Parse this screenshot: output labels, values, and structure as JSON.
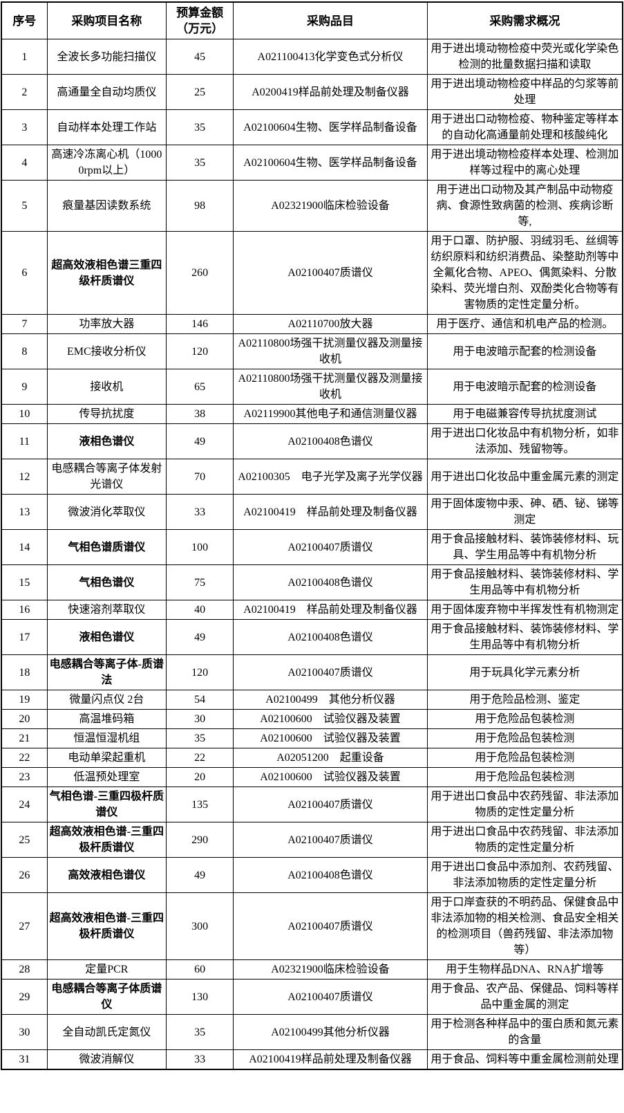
{
  "page": {
    "background_color": "#ffffff",
    "text_color": "#000000",
    "border_color": "#000000"
  },
  "table": {
    "headers": [
      "序号",
      "采购项目名称",
      "预算金额（万元）",
      "采购品目",
      "采购需求概况"
    ],
    "rows": [
      {
        "no": "1",
        "name": "全波长多功能扫描仪",
        "bold": false,
        "budget": "45",
        "item": "A021100413化学变色式分析仪",
        "need": "用于进出境动物检疫中荧光或化学染色检测的批量数据扫描和读取"
      },
      {
        "no": "2",
        "name": "高通量全自动均质仪",
        "bold": false,
        "budget": "25",
        "item": "A0200419样品前处理及制备仪器",
        "need": "用于进出境动物检疫中样品的匀浆等前处理"
      },
      {
        "no": "3",
        "name": "自动样本处理工作站",
        "bold": false,
        "budget": "35",
        "item": "A02100604生物、医学样品制备设备",
        "need": "用于进出口动物检疫、物种鉴定等样本的自动化高通量前处理和核酸纯化"
      },
      {
        "no": "4",
        "name": "高速冷冻离心机（10000rpm以上）",
        "bold": false,
        "budget": "35",
        "item": "A02100604生物、医学样品制备设备",
        "need": "用于进出境动物检疫样本处理、检测加样等过程中的离心处理"
      },
      {
        "no": "5",
        "name": "痕量基因读数系统",
        "bold": false,
        "budget": "98",
        "item": "A02321900临床检验设备",
        "need": "用于进出口动物及其产制品中动物疫病、食源性致病菌的检测、疾病诊断等,"
      },
      {
        "no": "6",
        "name": "超高效液相色谱三重四级杆质谱仪",
        "bold": true,
        "budget": "260",
        "item": "A02100407质谱仪",
        "need": "用于口罩、防护服、羽绒羽毛、丝绸等纺织原料和纺织消费品、染整助剂等中全氟化合物、APEO、偶氮染料、分散染料、荧光增白剂、双酚类化合物等有害物质的定性定量分析。"
      },
      {
        "no": "7",
        "name": "功率放大器",
        "bold": false,
        "budget": "146",
        "item": "A02110700放大器",
        "need": "用于医疗、通信和机电产品的检测。"
      },
      {
        "no": "8",
        "name": "EMC接收分析仪",
        "bold": false,
        "budget": "120",
        "item": "A02110800场强干扰测量仪器及测量接收机",
        "need": "用于电波暗示配套的检测设备"
      },
      {
        "no": "9",
        "name": "接收机",
        "bold": false,
        "budget": "65",
        "item": "A02110800场强干扰测量仪器及测量接收机",
        "need": "用于电波暗示配套的检测设备"
      },
      {
        "no": "10",
        "name": "传导抗扰度",
        "bold": false,
        "budget": "38",
        "item": "A02119900其他电子和通信测量仪器",
        "need": "用于电磁兼容传导抗扰度测试"
      },
      {
        "no": "11",
        "name": "液相色谱仪",
        "bold": true,
        "budget": "49",
        "item": "A02100408色谱仪",
        "need": "用于进出口化妆品中有机物分析，如非法添加、残留物等。"
      },
      {
        "no": "12",
        "name": "电感耦合等离子体发射光谱仪",
        "bold": false,
        "budget": "70",
        "item": "A02100305　电子光学及离子光学仪器",
        "need": "用于进出口化妆品中重金属元素的测定"
      },
      {
        "no": "13",
        "name": "微波消化萃取仪",
        "bold": false,
        "budget": "33",
        "item": "A02100419　样品前处理及制备仪器",
        "need": "用于固体废物中汞、砷、硒、铋、锑等测定"
      },
      {
        "no": "14",
        "name": "气相色谱质谱仪",
        "bold": true,
        "budget": "100",
        "item": "A02100407质谱仪",
        "need": "用于食品接触材料、装饰装修材料、玩具、学生用品等中有机物分析"
      },
      {
        "no": "15",
        "name": "气相色谱仪",
        "bold": true,
        "budget": "75",
        "item": "A02100408色谱仪",
        "need": "用于食品接触材料、装饰装修材料、学生用品等中有机物分析"
      },
      {
        "no": "16",
        "name": "快速溶剂萃取仪",
        "bold": false,
        "budget": "40",
        "item": "A02100419　样品前处理及制备仪器",
        "need": "用于固体废弃物中半挥发性有机物测定"
      },
      {
        "no": "17",
        "name": "液相色谱仪",
        "bold": true,
        "budget": "49",
        "item": "A02100408色谱仪",
        "need": "用于食品接触材料、装饰装修材料、学生用品等中有机物分析"
      },
      {
        "no": "18",
        "name": "电感耦合等离子体-质谱法",
        "bold": true,
        "budget": "120",
        "item": "A02100407质谱仪",
        "need": "用于玩具化学元素分析"
      },
      {
        "no": "19",
        "name": "微量闪点仪 2台",
        "bold": false,
        "budget": "54",
        "item": "A02100499　其他分析仪器",
        "need": "用于危险品检测、鉴定"
      },
      {
        "no": "20",
        "name": "高温堆码箱",
        "bold": false,
        "budget": "30",
        "item": "A02100600　试验仪器及装置",
        "need": "用于危险品包装检测"
      },
      {
        "no": "21",
        "name": "恒温恒湿机组",
        "bold": false,
        "budget": "35",
        "item": "A02100600　试验仪器及装置",
        "need": "用于危险品包装检测"
      },
      {
        "no": "22",
        "name": "电动单梁起重机",
        "bold": false,
        "budget": "22",
        "item": "A02051200　起重设备",
        "need": "用于危险品包装检测"
      },
      {
        "no": "23",
        "name": "低温预处理室",
        "bold": false,
        "budget": "20",
        "item": "A02100600　试验仪器及装置",
        "need": "用于危险品包装检测"
      },
      {
        "no": "24",
        "name": "气相色谱-三重四极杆质谱仪",
        "bold": true,
        "budget": "135",
        "item": "A02100407质谱仪",
        "need": "用于进出口食品中农药残留、非法添加物质的定性定量分析"
      },
      {
        "no": "25",
        "name": "超高效液相色谱-三重四极杆质谱仪",
        "bold": true,
        "budget": "290",
        "item": "A02100407质谱仪",
        "need": "用于进出口食品中农药残留、非法添加物质的定性定量分析"
      },
      {
        "no": "26",
        "name": "高效液相色谱仪",
        "bold": true,
        "budget": "49",
        "item": "A02100408色谱仪",
        "need": "用于进出口食品中添加剂、农药残留、非法添加物质的定性定量分析"
      },
      {
        "no": "27",
        "name": "超高效液相色谱-三重四极杆质谱仪",
        "bold": true,
        "budget": "300",
        "item": "A02100407质谱仪",
        "need": "用于口岸查获的不明药品、保健食品中非法添加物的相关检测、食品安全相关的检测项目（兽药残留、非法添加物等）"
      },
      {
        "no": "28",
        "name": "定量PCR",
        "bold": false,
        "budget": "60",
        "item": "A02321900临床检验设备",
        "need": "用于生物样品DNA、RNA扩增等"
      },
      {
        "no": "29",
        "name": "电感耦合等离子体质谱仪",
        "bold": true,
        "budget": "130",
        "item": "A02100407质谱仪",
        "need": "用于食品、农产品、保健品、饲料等样品中重金属的测定"
      },
      {
        "no": "30",
        "name": "全自动凯氏定氮仪",
        "bold": false,
        "budget": "35",
        "item": "A02100499其他分析仪器",
        "need": "用于检测各种样品中的蛋白质和氮元素的含量"
      },
      {
        "no": "31",
        "name": "微波消解仪",
        "bold": false,
        "budget": "33",
        "item": "A02100419样品前处理及制备仪器",
        "need": "用于食品、饲料等中重金属检测前处理"
      }
    ]
  }
}
